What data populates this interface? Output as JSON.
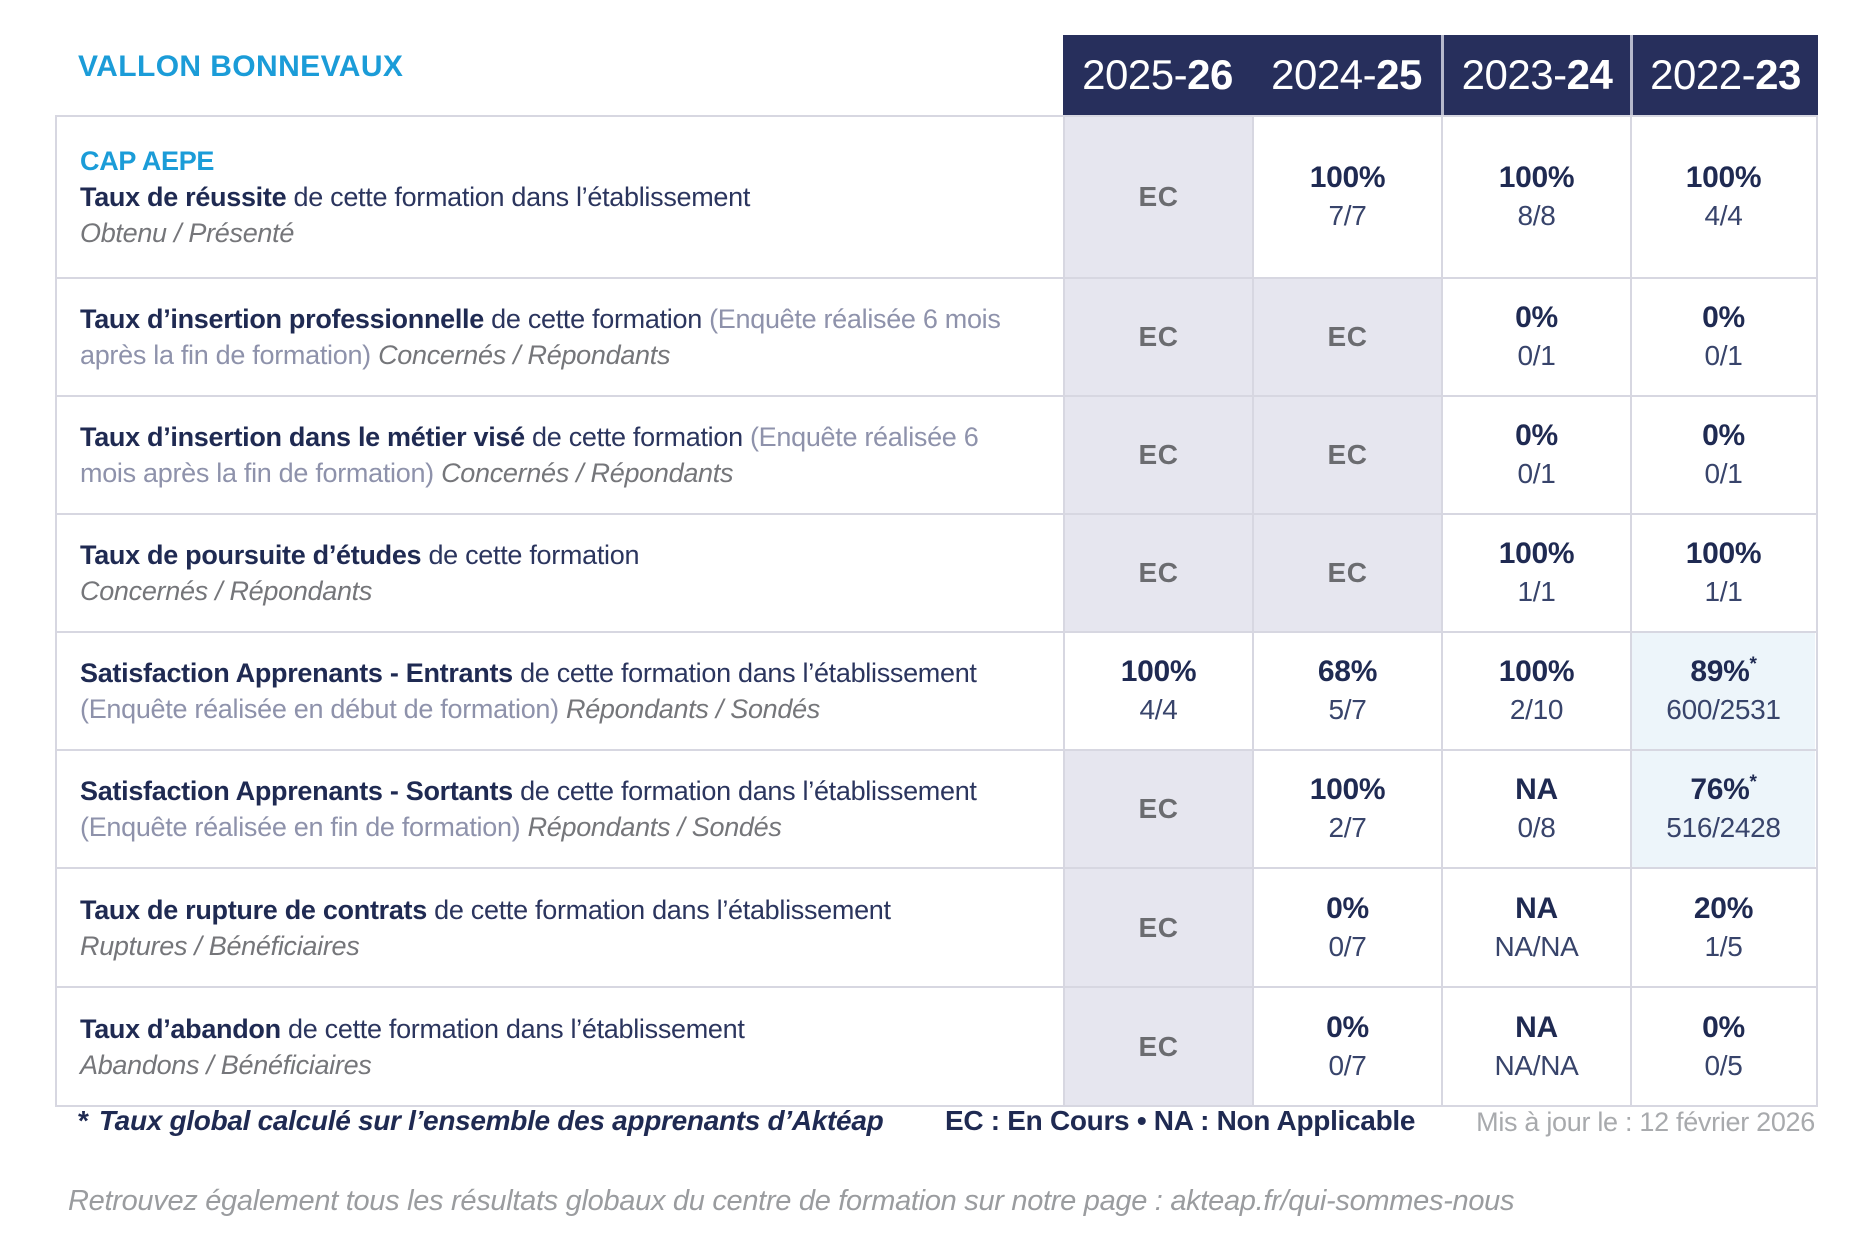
{
  "brand": "VALLON BONNEVAUX",
  "program": "CAP AEPE",
  "header": {
    "years": [
      {
        "prefix": "2025-",
        "suffix": "26"
      },
      {
        "prefix": "2024-",
        "suffix": "25"
      },
      {
        "prefix": "2023-",
        "suffix": "24"
      },
      {
        "prefix": "2022-",
        "suffix": "23"
      }
    ]
  },
  "rows": [
    {
      "title": "Taux de réussite",
      "desc": " de cette formation dans l’établissement",
      "sub": "Obtenu / Présenté",
      "cells": [
        {
          "main": "EC"
        },
        {
          "main": "100%",
          "sub": "7/7"
        },
        {
          "main": "100%",
          "sub": "8/8"
        },
        {
          "main": "100%",
          "sub": "4/4"
        }
      ]
    },
    {
      "title": "Taux d’insertion professionnelle",
      "desc": " de cette formation ",
      "paren": "(Enquête réalisée 6 mois après la fin de formation) ",
      "sub": "Concernés / Répondants",
      "cells": [
        {
          "main": "EC"
        },
        {
          "main": "EC"
        },
        {
          "main": "0%",
          "sub": "0/1"
        },
        {
          "main": "0%",
          "sub": "0/1"
        }
      ]
    },
    {
      "title": "Taux d’insertion dans le métier visé",
      "desc": " de cette formation ",
      "paren": "(Enquête réalisée 6 mois après la fin de formation) ",
      "sub": "Concernés / Répondants",
      "cells": [
        {
          "main": "EC"
        },
        {
          "main": "EC"
        },
        {
          "main": "0%",
          "sub": "0/1"
        },
        {
          "main": "0%",
          "sub": "0/1"
        }
      ]
    },
    {
      "title": "Taux de poursuite d’études",
      "desc": " de cette formation",
      "sub": "Concernés / Répondants",
      "cells": [
        {
          "main": "EC"
        },
        {
          "main": "EC"
        },
        {
          "main": "100%",
          "sub": "1/1"
        },
        {
          "main": "100%",
          "sub": "1/1"
        }
      ]
    },
    {
      "title": "Satisfaction Apprenants - Entrants",
      "desc": " de cette formation dans l’établissement ",
      "paren": "(Enquête réalisée en début de formation) ",
      "sub": "Répondants / Sondés",
      "cells": [
        {
          "main": "100%",
          "sub": "4/4"
        },
        {
          "main": "68%",
          "sub": "5/7"
        },
        {
          "main": "100%",
          "sub": "2/10"
        },
        {
          "main": "89%",
          "star": "*",
          "sub": "600/2531"
        }
      ]
    },
    {
      "title": "Satisfaction Apprenants - Sortants",
      "desc": " de cette formation dans l’établissement ",
      "paren": "(Enquête réalisée en fin de formation) ",
      "sub": "Répondants / Sondés",
      "cells": [
        {
          "main": "EC"
        },
        {
          "main": "100%",
          "sub": "2/7"
        },
        {
          "main": "NA",
          "sub": "0/8"
        },
        {
          "main": "76%",
          "star": "*",
          "sub": "516/2428"
        }
      ]
    },
    {
      "title": "Taux de rupture de contrats",
      "desc": " de cette formation dans l’établissement",
      "sub": "Ruptures / Bénéficiaires",
      "cells": [
        {
          "main": "EC"
        },
        {
          "main": "0%",
          "sub": "0/7"
        },
        {
          "main": "NA",
          "sub": "NA/NA"
        },
        {
          "main": "20%",
          "sub": "1/5"
        }
      ]
    },
    {
      "title": "Taux d’abandon",
      "desc": " de cette formation dans l’établissement",
      "sub": "Abandons / Bénéficiaires",
      "cells": [
        {
          "main": "EC"
        },
        {
          "main": "0%",
          "sub": "0/7"
        },
        {
          "main": "NA",
          "sub": "NA/NA"
        },
        {
          "main": "0%",
          "sub": "0/5"
        }
      ]
    }
  ],
  "footer": {
    "star": "*",
    "note": "Taux global calculé sur l’ensemble des apprenants d’Aktéap",
    "legend": "EC : En Cours   •   NA : Non Applicable",
    "updated": "Mis à jour le : 12 février 2026",
    "bottom": "Retrouvez également tous les résultats globaux du centre de formation sur notre page : akteap.fr/qui-sommes-nous"
  },
  "colors": {
    "accent_blue": "#1b9cd8",
    "navy": "#272f5c",
    "ec_cell_bg": "#e6e6ef",
    "highlight_cell_bg": "#edf5fa",
    "grid_border": "#d7d7e1"
  }
}
